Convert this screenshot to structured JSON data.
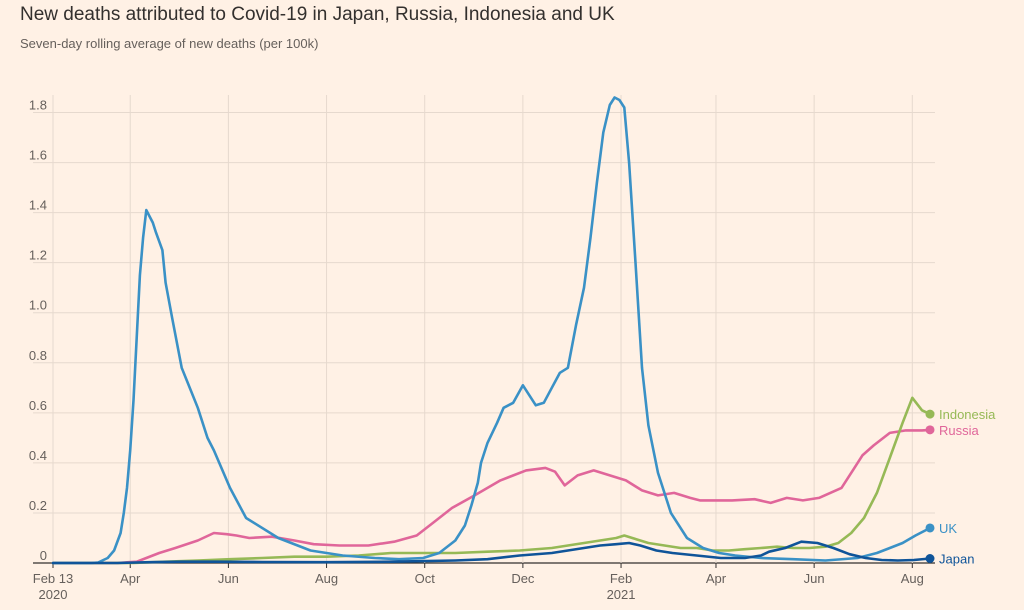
{
  "header": {
    "title": "New deaths attributed to Covid-19 in Japan, Russia, Indonesia and UK",
    "subtitle": "Seven-day rolling average of new deaths (per 100k)"
  },
  "chart_data": {
    "type": "line",
    "title": "New deaths attributed to Covid-19 in Japan, Russia, Indonesia and UK",
    "subtitle": "Seven-day rolling average of new deaths (per 100k)",
    "xlabel": "",
    "ylabel": "",
    "ylim": [
      0,
      1.85
    ],
    "yticks": [
      0,
      0.2,
      0.4,
      0.6,
      0.8,
      1.0,
      1.2,
      1.4,
      1.6,
      1.8
    ],
    "ytick_labels": [
      "0",
      "0.2",
      "0.4",
      "0.6",
      "0.8",
      "1.0",
      "1.2",
      "1.4",
      "1.6",
      "1.8"
    ],
    "x_unit": "days since 2020-02-13",
    "xlim": [
      0,
      545
    ],
    "xticks": [
      {
        "day": 0,
        "label": "Feb 13",
        "sublabel": "2020"
      },
      {
        "day": 48,
        "label": "Apr",
        "sublabel": ""
      },
      {
        "day": 109,
        "label": "Jun",
        "sublabel": ""
      },
      {
        "day": 170,
        "label": "Aug",
        "sublabel": ""
      },
      {
        "day": 231,
        "label": "Oct",
        "sublabel": ""
      },
      {
        "day": 292,
        "label": "Dec",
        "sublabel": ""
      },
      {
        "day": 353,
        "label": "Feb",
        "sublabel": "2021"
      },
      {
        "day": 412,
        "label": "Apr",
        "sublabel": ""
      },
      {
        "day": 473,
        "label": "Jun",
        "sublabel": ""
      },
      {
        "day": 534,
        "label": "Aug",
        "sublabel": ""
      }
    ],
    "grid": true,
    "series": [
      {
        "name": "Russia",
        "label": "Russia",
        "color": "#e0669a",
        "x": [
          0,
          40,
          52,
          58,
          66,
          76,
          90,
          100,
          108,
          114,
          122,
          136,
          150,
          162,
          178,
          196,
          212,
          226,
          236,
          248,
          262,
          278,
          294,
          306,
          312,
          318,
          326,
          336,
          346,
          356,
          366,
          376,
          386,
          396,
          402,
          412,
          422,
          436,
          446,
          456,
          466,
          476,
          490,
          498,
          503,
          510,
          520,
          530,
          540,
          545
        ],
        "values": [
          0,
          0,
          0.005,
          0.02,
          0.04,
          0.06,
          0.09,
          0.12,
          0.115,
          0.11,
          0.1,
          0.105,
          0.09,
          0.075,
          0.07,
          0.07,
          0.085,
          0.11,
          0.16,
          0.22,
          0.27,
          0.33,
          0.37,
          0.38,
          0.365,
          0.31,
          0.35,
          0.37,
          0.35,
          0.33,
          0.29,
          0.27,
          0.28,
          0.26,
          0.25,
          0.25,
          0.25,
          0.255,
          0.24,
          0.26,
          0.25,
          0.26,
          0.3,
          0.38,
          0.43,
          0.47,
          0.52,
          0.53,
          0.53,
          0.532
        ]
      },
      {
        "name": "Indonesia",
        "label": "Indonesia",
        "color": "#96b956",
        "x": [
          0,
          30,
          50,
          70,
          90,
          110,
          130,
          150,
          170,
          190,
          210,
          230,
          250,
          270,
          290,
          310,
          320,
          330,
          340,
          350,
          355,
          360,
          370,
          380,
          390,
          400,
          410,
          420,
          430,
          440,
          450,
          460,
          470,
          480,
          488,
          496,
          504,
          512,
          520,
          528,
          534,
          540,
          545
        ],
        "values": [
          0,
          0,
          0,
          0.005,
          0.01,
          0.015,
          0.02,
          0.025,
          0.025,
          0.03,
          0.04,
          0.04,
          0.04,
          0.045,
          0.05,
          0.06,
          0.07,
          0.08,
          0.09,
          0.1,
          0.11,
          0.1,
          0.08,
          0.07,
          0.06,
          0.06,
          0.05,
          0.05,
          0.055,
          0.06,
          0.065,
          0.06,
          0.06,
          0.065,
          0.08,
          0.12,
          0.18,
          0.28,
          0.42,
          0.56,
          0.66,
          0.61,
          0.595
        ]
      },
      {
        "name": "UK",
        "label": "UK",
        "color": "#3a91c6",
        "x": [
          0,
          24,
          28,
          34,
          38,
          42,
          44,
          46,
          48,
          50,
          52,
          54,
          56,
          58,
          62,
          64,
          68,
          70,
          74,
          80,
          90,
          96,
          100,
          110,
          120,
          140,
          160,
          180,
          200,
          215,
          230,
          240,
          250,
          256,
          260,
          264,
          266,
          270,
          276,
          280,
          286,
          292,
          300,
          305,
          310,
          315,
          320,
          325,
          330,
          334,
          338,
          342,
          346,
          349,
          352,
          355,
          358,
          362,
          366,
          370,
          376,
          384,
          394,
          404,
          414,
          424,
          440,
          460,
          480,
          500,
          512,
          520,
          528,
          536,
          545
        ],
        "values": [
          0,
          0,
          0.002,
          0.02,
          0.05,
          0.12,
          0.2,
          0.3,
          0.45,
          0.65,
          0.9,
          1.15,
          1.3,
          1.41,
          1.36,
          1.32,
          1.25,
          1.12,
          0.98,
          0.78,
          0.62,
          0.5,
          0.45,
          0.3,
          0.18,
          0.1,
          0.05,
          0.03,
          0.02,
          0.015,
          0.02,
          0.04,
          0.09,
          0.15,
          0.23,
          0.32,
          0.4,
          0.48,
          0.56,
          0.62,
          0.64,
          0.71,
          0.63,
          0.64,
          0.7,
          0.76,
          0.78,
          0.95,
          1.1,
          1.3,
          1.52,
          1.72,
          1.83,
          1.86,
          1.85,
          1.82,
          1.6,
          1.2,
          0.78,
          0.55,
          0.36,
          0.2,
          0.1,
          0.06,
          0.04,
          0.03,
          0.02,
          0.015,
          0.01,
          0.02,
          0.04,
          0.06,
          0.08,
          0.11,
          0.14
        ]
      },
      {
        "name": "Japan",
        "label": "Japan",
        "color": "#0f5499",
        "x": [
          0,
          40,
          60,
          80,
          100,
          130,
          170,
          210,
          250,
          270,
          290,
          310,
          320,
          330,
          340,
          350,
          358,
          365,
          375,
          385,
          400,
          415,
          430,
          440,
          445,
          455,
          465,
          475,
          485,
          495,
          505,
          515,
          525,
          535,
          545
        ],
        "values": [
          0,
          0,
          0.003,
          0.005,
          0.005,
          0.004,
          0.003,
          0.005,
          0.01,
          0.015,
          0.03,
          0.04,
          0.05,
          0.06,
          0.07,
          0.075,
          0.08,
          0.07,
          0.05,
          0.04,
          0.03,
          0.02,
          0.02,
          0.03,
          0.045,
          0.06,
          0.085,
          0.08,
          0.06,
          0.035,
          0.02,
          0.012,
          0.01,
          0.012,
          0.018
        ]
      }
    ]
  }
}
